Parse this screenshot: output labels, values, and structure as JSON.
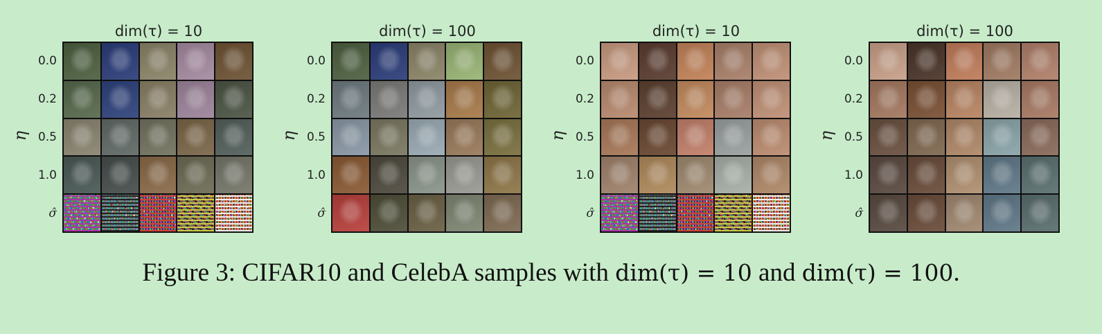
{
  "row_labels": [
    "0.0",
    "0.2",
    "0.5",
    "1.0",
    "σ̂"
  ],
  "axis_label": "η",
  "panels": [
    {
      "title": "dim(τ) = 10",
      "dataset": "CIFAR10",
      "cells": [
        [
          "#4d6040",
          "#2b3d7a",
          "#8b8468",
          "#a58aa0",
          "#6e5334"
        ],
        [
          "#56694c",
          "#2e427c",
          "#8a8066",
          "#9d849b",
          "#4c5545"
        ],
        [
          "#8a8470",
          "#616a66",
          "#72735f",
          "#7b6648",
          "#53605b"
        ],
        [
          "#4a5956",
          "#464e4c",
          "#8a6a48",
          "#6d6c55",
          "#75776a"
        ],
        [
          "noise",
          "noise",
          "noise",
          "noise",
          "noise"
        ]
      ]
    },
    {
      "title": "dim(τ) = 100",
      "dataset": "CIFAR10",
      "cells": [
        [
          "#4d6040",
          "#2b3d7a",
          "#8b8468",
          "#98b474",
          "#6e5334"
        ],
        [
          "#6e7a80",
          "#7a7a78",
          "#8f9aa0",
          "#a87a4a",
          "#6f6536"
        ],
        [
          "#8a98a6",
          "#7a7860",
          "#9aaab4",
          "#9a7a5a",
          "#7a7040"
        ],
        [
          "#8a5a34",
          "#4e4a3e",
          "#8a948a",
          "#9a9a94",
          "#8e7648"
        ],
        [
          "#b8403c",
          "#4e4e38",
          "#6a6044",
          "#7e8672",
          "#7e6a52"
        ]
      ]
    },
    {
      "title": "dim(τ) = 10",
      "dataset": "CelebA",
      "cells": [
        [
          "#c89a80",
          "#5a3c30",
          "#c28258",
          "#a8806a",
          "#c09076"
        ],
        [
          "#b88a6e",
          "#5c4030",
          "#c28a5e",
          "#a87e68",
          "#c09076"
        ],
        [
          "#a87858",
          "#6a4832",
          "#c2806a",
          "#9aa0a0",
          "#bc8c70"
        ],
        [
          "#a0826c",
          "#b08a5c",
          "#a08a70",
          "#a8b0a8",
          "#b08868"
        ],
        [
          "noise",
          "noise",
          "noise",
          "noise",
          "noise"
        ]
      ]
    },
    {
      "title": "dim(τ) = 100",
      "dataset": "CelebA",
      "cells": [
        [
          "#c8a088",
          "#4a3428",
          "#c07c5a",
          "#a07a62",
          "#b0806a"
        ],
        [
          "#a47860",
          "#7a5034",
          "#b88462",
          "#b8b0a4",
          "#a87a64"
        ],
        [
          "#6a5040",
          "#806850",
          "#b08868",
          "#8aa4a8",
          "#8a6a5a"
        ],
        [
          "#5a4a40",
          "#6a4c3a",
          "#b09070",
          "#607888",
          "#5a7070"
        ],
        [
          "#584a40",
          "#6a4c3a",
          "#a08870",
          "#607888",
          "#5a6e6e"
        ]
      ]
    }
  ],
  "caption": {
    "prefix": "Figure 3: CIFAR10 and CelebA samples with ",
    "math1": "dim(τ) = 10",
    "middle": " and ",
    "math2": "dim(τ) = 100",
    "suffix": "."
  }
}
